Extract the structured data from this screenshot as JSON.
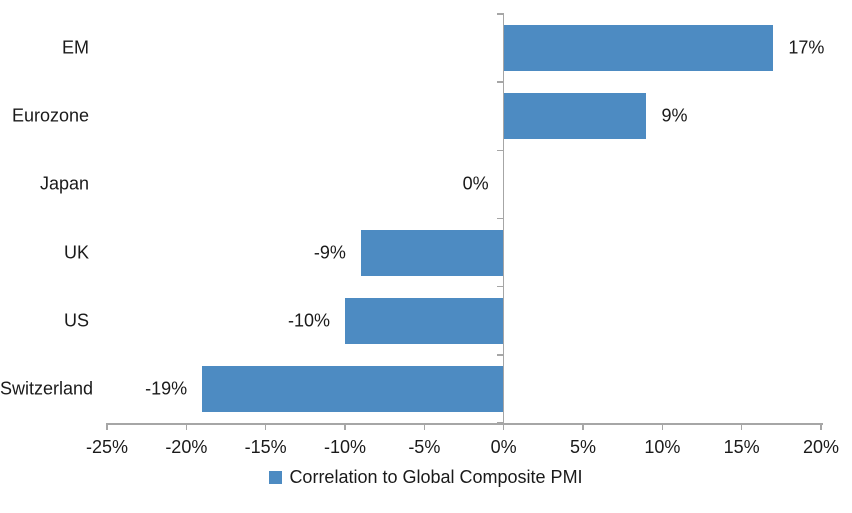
{
  "chart_data": {
    "type": "bar",
    "orientation": "horizontal",
    "title": "",
    "categories": [
      "EM",
      "Eurozone",
      "Japan",
      "UK",
      "US",
      "Switzerland"
    ],
    "values": [
      17,
      9,
      0,
      -9,
      -10,
      -19
    ],
    "value_labels": [
      "17%",
      "9%",
      "0%",
      "-9%",
      "-10%",
      "-19%"
    ],
    "xlim": [
      -25,
      20
    ],
    "x_ticks": [
      -25,
      -20,
      -15,
      -10,
      -5,
      0,
      5,
      10,
      15,
      20
    ],
    "x_tick_labels": [
      "-25%",
      "-20%",
      "-15%",
      "-10%",
      "-5%",
      "0%",
      "5%",
      "10%",
      "15%",
      "20%"
    ],
    "grid": false,
    "value_axis_position": "zero",
    "legend": {
      "position": "bottom-center",
      "entries": [
        {
          "label": "Correlation to Global Composite PMI",
          "color": "#4D8BC2"
        }
      ]
    }
  },
  "colors": {
    "bar": "#4D8BC2",
    "axis": "#A6A6A6",
    "text": "#1A1A1A",
    "background": "#FFFFFF"
  }
}
